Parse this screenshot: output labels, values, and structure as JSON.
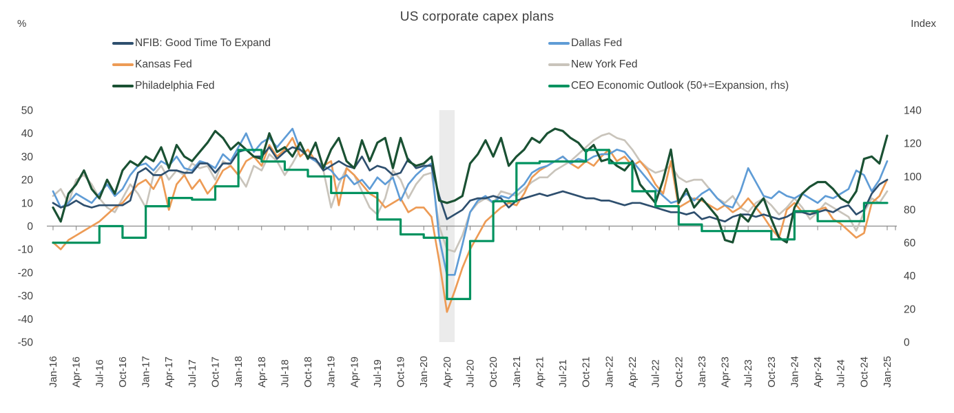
{
  "title": "US corporate capex plans",
  "chart_data": {
    "type": "line",
    "title": "US corporate capex plans",
    "x_unit": "month",
    "x_start": "Jan-16",
    "x_end": "Jan-25",
    "grid": false,
    "legend_position": "top-two-columns",
    "left_axis": {
      "label": "%",
      "min": -50,
      "max": 50,
      "tick_step": 10
    },
    "right_axis": {
      "label": "Index",
      "min": 0,
      "max": 140,
      "tick_step": 20
    },
    "x_tick_labels": [
      "Jan-16",
      "Apr-16",
      "Jul-16",
      "Oct-16",
      "Jan-17",
      "Apr-17",
      "Jul-17",
      "Oct-17",
      "Jan-18",
      "Apr-18",
      "Jul-18",
      "Oct-18",
      "Jan-19",
      "Apr-19",
      "Jul-19",
      "Oct-19",
      "Jan-20",
      "Apr-20",
      "Jul-20",
      "Oct-20",
      "Jan-21",
      "Apr-21",
      "Jul-21",
      "Oct-21",
      "Jan-22",
      "Apr-22",
      "Jul-22",
      "Oct-22",
      "Jan-23",
      "Apr-23",
      "Jul-23",
      "Oct-23",
      "Jan-24",
      "Apr-24",
      "Jul-24",
      "Oct-24",
      "Jan-25"
    ],
    "recession_band": {
      "start_label": "Mar-20",
      "end_label": "May-20",
      "start_month_index": 50,
      "end_month_index": 52,
      "color": "#ebebeb"
    },
    "legend": {
      "left_column": [
        "NFIB: Good Time To Expand",
        "Kansas Fed",
        "Philadelphia Fed"
      ],
      "right_column": [
        "Dallas Fed",
        "New York Fed",
        "CEO Economic Outlook (50+=Expansion, rhs)"
      ]
    },
    "series": [
      {
        "name": "NFIB: Good Time To Expand",
        "color": "#2e4f6e",
        "axis": "left",
        "frequency": "monthly",
        "values": [
          10,
          8,
          9,
          11,
          9,
          8,
          9,
          9,
          9,
          9,
          11,
          23,
          25,
          22,
          22,
          24,
          24,
          23,
          23,
          27,
          27,
          23,
          27,
          27,
          32,
          33,
          30,
          30,
          34,
          29,
          32,
          34,
          33,
          30,
          29,
          24,
          26,
          28,
          26,
          25,
          30,
          24,
          26,
          25,
          22,
          23,
          29,
          25,
          26,
          26,
          13,
          3,
          5,
          7,
          11,
          12,
          12,
          13,
          12,
          8,
          11,
          12,
          13,
          14,
          13,
          14,
          15,
          14,
          13,
          12,
          12,
          11,
          11,
          10,
          9,
          10,
          10,
          9,
          8,
          7,
          6,
          6,
          5,
          6,
          3,
          4,
          3,
          2,
          4,
          5,
          5,
          4,
          5,
          4,
          3,
          4,
          6,
          6,
          5,
          6,
          7,
          6,
          8,
          9,
          5,
          7,
          14,
          18,
          20
        ]
      },
      {
        "name": "Dallas Fed",
        "color": "#5f9cd6",
        "axis": "left",
        "frequency": "monthly",
        "values": [
          15,
          8,
          10,
          14,
          12,
          10,
          14,
          18,
          13,
          16,
          22,
          26,
          27,
          24,
          28,
          26,
          30,
          25,
          24,
          28,
          27,
          25,
          31,
          28,
          34,
          40,
          32,
          36,
          38,
          34,
          38,
          42,
          33,
          30,
          28,
          26,
          24,
          20,
          22,
          18,
          20,
          16,
          21,
          18,
          21,
          11,
          18,
          22,
          25,
          27,
          -5,
          -21,
          -21,
          -8,
          6,
          11,
          13,
          10,
          13,
          12,
          15,
          18,
          23,
          25,
          26,
          28,
          30,
          27,
          29,
          28,
          30,
          31,
          31,
          33,
          32,
          28,
          24,
          20,
          16,
          13,
          10,
          11,
          14,
          11,
          14,
          16,
          12,
          9,
          8,
          15,
          25,
          19,
          13,
          12,
          15,
          13,
          12,
          14,
          12,
          10,
          13,
          12,
          14,
          16,
          24,
          22,
          15,
          20,
          28
        ]
      },
      {
        "name": "Kansas Fed",
        "color": "#ed9b55",
        "axis": "left",
        "frequency": "monthly",
        "values": [
          -7,
          -10,
          -6,
          -4,
          -2,
          0,
          2,
          5,
          8,
          10,
          14,
          18,
          20,
          16,
          22,
          7,
          18,
          22,
          16,
          20,
          14,
          18,
          24,
          26,
          22,
          28,
          30,
          26,
          35,
          30,
          33,
          38,
          30,
          33,
          28,
          26,
          28,
          9,
          25,
          22,
          18,
          14,
          12,
          8,
          10,
          12,
          6,
          8,
          8,
          4,
          -15,
          -37,
          -28,
          -18,
          -10,
          -4,
          2,
          5,
          8,
          10,
          9,
          14,
          21,
          24,
          26,
          28,
          30,
          27,
          25,
          28,
          26,
          30,
          33,
          28,
          30,
          26,
          28,
          24,
          18,
          14,
          28,
          8,
          10,
          12,
          11,
          9,
          7,
          9,
          6,
          8,
          12,
          8,
          4,
          -1,
          -5,
          7,
          10,
          6,
          5,
          7,
          8,
          3,
          1,
          -2,
          -5,
          -3,
          10,
          13,
          20
        ]
      },
      {
        "name": "New York Fed",
        "color": "#c9c4bb",
        "axis": "left",
        "frequency": "monthly",
        "values": [
          13,
          16,
          10,
          20,
          22,
          18,
          12,
          8,
          6,
          12,
          18,
          14,
          8,
          22,
          26,
          20,
          24,
          22,
          27,
          25,
          26,
          20,
          28,
          26,
          22,
          17,
          26,
          24,
          31,
          28,
          22,
          27,
          33,
          30,
          28,
          24,
          8,
          18,
          25,
          22,
          15,
          8,
          5,
          12,
          24,
          20,
          12,
          18,
          22,
          23,
          0,
          -10,
          -11,
          -4,
          6,
          10,
          12,
          10,
          15,
          14,
          13,
          16,
          19,
          21,
          21,
          24,
          26,
          28,
          31,
          34,
          37,
          39,
          40,
          38,
          37,
          33,
          28,
          25,
          23,
          24,
          26,
          21,
          19,
          20,
          20,
          16,
          12,
          10,
          13,
          8,
          6,
          10,
          12,
          9,
          5,
          8,
          12,
          8,
          3,
          6,
          10,
          8,
          6,
          4,
          -2,
          6,
          12,
          10,
          15
        ]
      },
      {
        "name": "Philadelphia Fed",
        "color": "#1a5133",
        "axis": "left",
        "frequency": "monthly",
        "values": [
          8,
          2,
          14,
          18,
          24,
          16,
          12,
          20,
          14,
          24,
          28,
          26,
          30,
          28,
          34,
          25,
          35,
          30,
          28,
          32,
          36,
          41,
          38,
          33,
          36,
          33,
          30,
          29,
          40,
          32,
          34,
          30,
          36,
          29,
          36,
          25,
          33,
          38,
          28,
          25,
          37,
          28,
          36,
          38,
          25,
          38,
          28,
          26,
          27,
          30,
          11,
          10,
          11,
          13,
          27,
          31,
          37,
          30,
          38,
          26,
          30,
          33,
          38,
          36,
          40,
          42,
          41,
          38,
          36,
          32,
          35,
          28,
          29,
          26,
          24,
          28,
          18,
          14,
          10,
          20,
          33,
          10,
          16,
          8,
          12,
          8,
          4,
          -6,
          -7,
          5,
          2,
          8,
          12,
          3,
          -5,
          -7,
          8,
          14,
          17,
          19,
          19,
          16,
          12,
          10,
          15,
          29,
          30,
          27,
          39
        ]
      },
      {
        "name": "CEO Economic Outlook (50+=Expansion, rhs)",
        "color": "#00925f",
        "axis": "right",
        "frequency": "quarterly",
        "step": true,
        "values": [
          60,
          60,
          70,
          63,
          82,
          87,
          86,
          94,
          116,
          109,
          104,
          100,
          90,
          90,
          74,
          65,
          63,
          26,
          61,
          85,
          108,
          109,
          109,
          116,
          108,
          91,
          82,
          71,
          67,
          67,
          67,
          62,
          79,
          73,
          73,
          84,
          84
        ]
      }
    ]
  }
}
